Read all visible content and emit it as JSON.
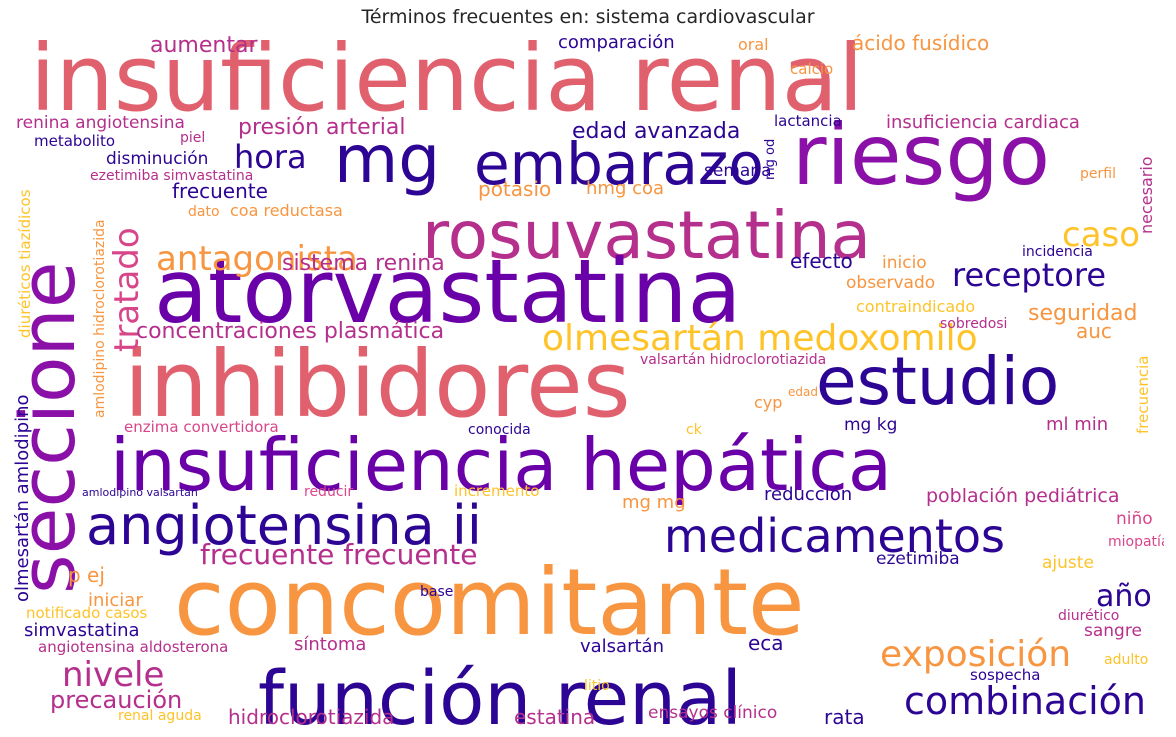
{
  "title": "Términos frecuentes en: sistema cardiovascular",
  "colors": {
    "c1": "#e0606e",
    "c2": "#8a10a8",
    "c3": "#2c0594",
    "c4": "#f89540",
    "c5": "#d8468a",
    "c6": "#b52f8c",
    "c7": "#fdc328",
    "c8": "#6a00a8"
  },
  "words": [
    "insuficiencia renal",
    "riesgo",
    "mg",
    "embarazo",
    "seccione",
    "rosuvastatina",
    "atorvastatina",
    "inhibidores",
    "estudio",
    "insuficiencia hepática",
    "concomitante",
    "función renal",
    "angiotensina ii",
    "medicamentos",
    "combinación",
    "exposición",
    "olmesartán medoxomilo",
    "antagonista",
    "receptore",
    "caso",
    "tratado",
    "hora",
    "nivele",
    "año",
    "frecuente frecuente",
    "concentraciones plasmática",
    "sistema renina",
    "presión arterial",
    "edad avanzada",
    "aumentar",
    "comparación",
    "oral",
    "ácido fusídico",
    "calcio",
    "renina angiotensina",
    "metabolito",
    "piel",
    "lactancia",
    "insuficiencia cardiaca",
    "disminución",
    "ezetimiba simvastatina",
    "frecuente",
    "potasio",
    "hmg coa",
    "semana",
    "mg od",
    "necesario",
    "perfil",
    "dato",
    "coa reductasa",
    "diuréticos tiazídicos",
    "amlodipino hidroclorotiazida",
    "efecto",
    "inicio",
    "incidencia",
    "observado",
    "contraindicado",
    "seguridad",
    "auc",
    "sobredosi",
    "valsartán hidroclorotiazida",
    "frecuencia",
    "olmesartán amlodipino",
    "cyp",
    "edad",
    "mg kg",
    "ml min",
    "enzima convertidora",
    "conocida",
    "ck",
    "amlodipino valsartán",
    "reducir",
    "incremento",
    "mg mg",
    "reducción",
    "población pediátrica",
    "niño",
    "miopatía",
    "ezetimiba",
    "ajuste",
    "p ej",
    "iniciar",
    "base",
    "notificado casos",
    "diurético",
    "simvastatina",
    "sangre",
    "angiotensina aldosterona",
    "síntoma",
    "valsartán",
    "eca",
    "adulto",
    "sospecha",
    "precaución",
    "litio",
    "renal aguda",
    "hidroclorotiazida",
    "estatina",
    "ensayos clínico",
    "rata"
  ]
}
